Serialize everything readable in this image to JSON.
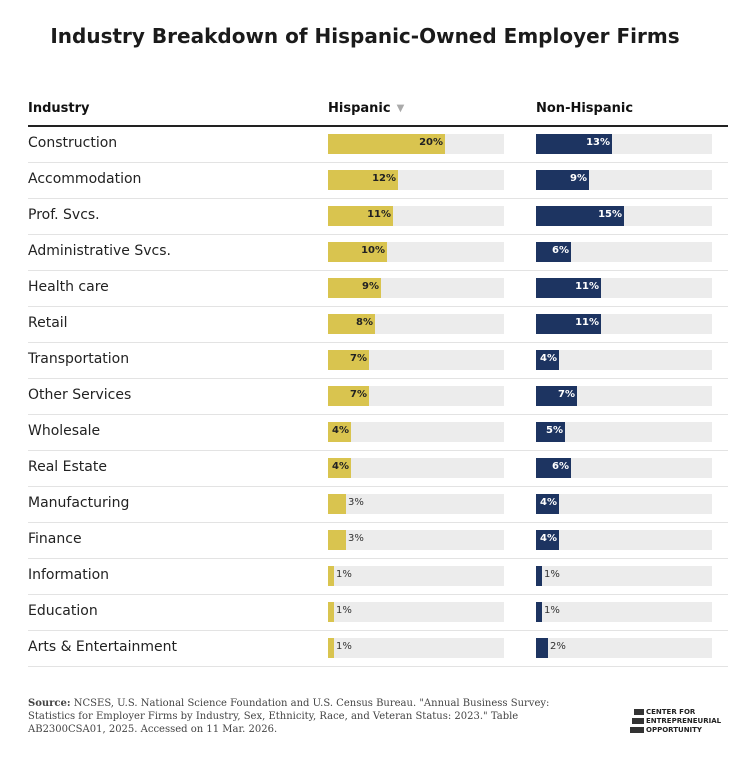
{
  "title": "Industry Breakdown of Hispanic-Owned Employer Firms",
  "headers": {
    "industry": "Industry",
    "hispanic": "Hispanic",
    "sort_indicator": "▼",
    "non_hispanic": "Non-Hispanic"
  },
  "colors": {
    "hispanic": "#d9c44f",
    "non_hispanic": "#1d3461",
    "track": "#ececec"
  },
  "chart_data": {
    "type": "bar",
    "title": "Industry Breakdown of Hispanic-Owned Employer Firms",
    "categories": [
      "Construction",
      "Accommodation",
      "Prof. Svcs.",
      "Administrative Svcs.",
      "Health care",
      "Retail",
      "Transportation",
      "Other Services",
      "Wholesale",
      "Real Estate",
      "Manufacturing",
      "Finance",
      "Information",
      "Education",
      "Arts & Entertainment"
    ],
    "series": [
      {
        "name": "Hispanic",
        "values": [
          20,
          12,
          11,
          10,
          9,
          8,
          7,
          7,
          4,
          4,
          3,
          3,
          1,
          1,
          1
        ]
      },
      {
        "name": "Non-Hispanic",
        "values": [
          13,
          9,
          15,
          6,
          11,
          11,
          4,
          7,
          5,
          6,
          4,
          4,
          1,
          1,
          2
        ]
      }
    ],
    "unit": "%",
    "xlim": [
      0,
      30
    ]
  },
  "source": {
    "label": "Source:",
    "text": "NCSES, U.S. National Science Foundation and U.S. Census Bureau. \"Annual Business Survey: Statistics for Employer Firms by Industry, Sex, Ethnicity, Race, and Veteran Status: 2023.\" Table AB2300CSA01, 2025. Accessed on 11 Mar. 2026."
  },
  "logo": {
    "line1": "CENTER FOR",
    "line2": "ENTREPRENEURIAL",
    "line3": "OPPORTUNITY"
  }
}
